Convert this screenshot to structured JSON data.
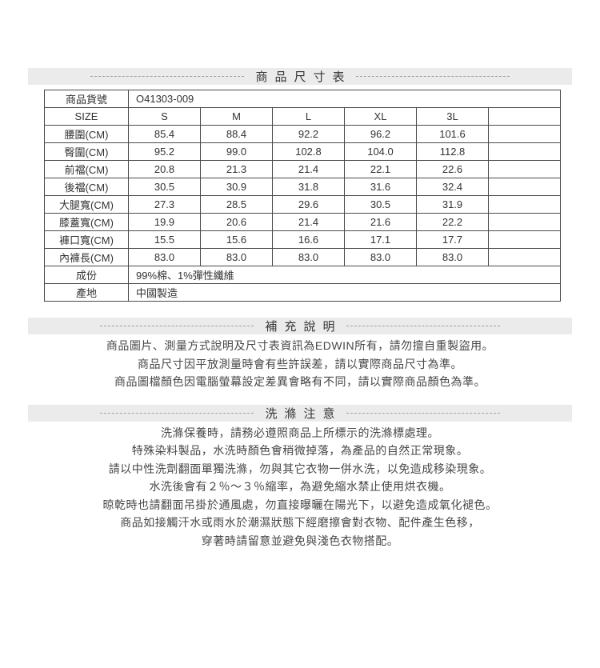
{
  "theme": {
    "band_bg": "#ebebeb",
    "table_border": "#4a4a4a",
    "dash_color": "#9f9f9f",
    "text_color": "#3d3d3d"
  },
  "size_chart": {
    "title": "商品尺寸表",
    "product_code_label": "商品貨號",
    "product_code": "O41303-009",
    "size_header_label": "SIZE",
    "sizes": [
      "S",
      "M",
      "L",
      "XL",
      "3L"
    ],
    "rows": [
      {
        "label": "腰圍(CM)",
        "values": [
          "85.4",
          "88.4",
          "92.2",
          "96.2",
          "101.6"
        ]
      },
      {
        "label": "臀圍(CM)",
        "values": [
          "95.2",
          "99.0",
          "102.8",
          "104.0",
          "112.8"
        ]
      },
      {
        "label": "前襠(CM)",
        "values": [
          "20.8",
          "21.3",
          "21.4",
          "22.1",
          "22.6"
        ]
      },
      {
        "label": "後襠(CM)",
        "values": [
          "30.5",
          "30.9",
          "31.8",
          "31.6",
          "32.4"
        ]
      },
      {
        "label": "大腿寬(CM)",
        "values": [
          "27.3",
          "28.5",
          "29.6",
          "30.5",
          "31.9"
        ]
      },
      {
        "label": "膝蓋寬(CM)",
        "values": [
          "19.9",
          "20.6",
          "21.4",
          "21.6",
          "22.2"
        ]
      },
      {
        "label": "褲口寬(CM)",
        "values": [
          "15.5",
          "15.6",
          "16.6",
          "17.1",
          "17.7"
        ]
      },
      {
        "label": "內褲長(CM)",
        "values": [
          "83.0",
          "83.0",
          "83.0",
          "83.0",
          "83.0"
        ]
      }
    ],
    "composition_label": "成份",
    "composition_value": "99%棉、1%彈性纖維",
    "origin_label": "產地",
    "origin_value": "中國製造"
  },
  "supplement": {
    "title": "補充說明",
    "lines": [
      "商品圖片、測量方式說明及尺寸表資訊為EDWIN所有，請勿擅自重製盜用。",
      "商品尺寸因平放測量時會有些許誤差，請以實際商品尺寸為準。",
      "商品圖檔顏色因電腦螢幕設定差異會略有不同，請以實際商品顏色為準。"
    ]
  },
  "washing": {
    "title": "洗滌注意",
    "lines": [
      "洗滌保養時，請務必遵照商品上所標示的洗滌標處理。",
      "特殊染料製品，水洗時顏色會稍微掉落，為產品的自然正常現象。",
      "請以中性洗劑翻面單獨洗滌，勿與其它衣物一併水洗，以免造成移染現象。",
      "水洗後會有２％～３％縮率，為避免縮水禁止使用烘衣機。",
      "晾乾時也請翻面吊掛於通風處，勿直接曝曬在陽光下，以避免造成氧化褪色。",
      "商品如接觸汗水或雨水於潮濕狀態下經磨擦會對衣物、配件產生色移，",
      "穿著時請留意並避免與淺色衣物搭配。"
    ]
  }
}
